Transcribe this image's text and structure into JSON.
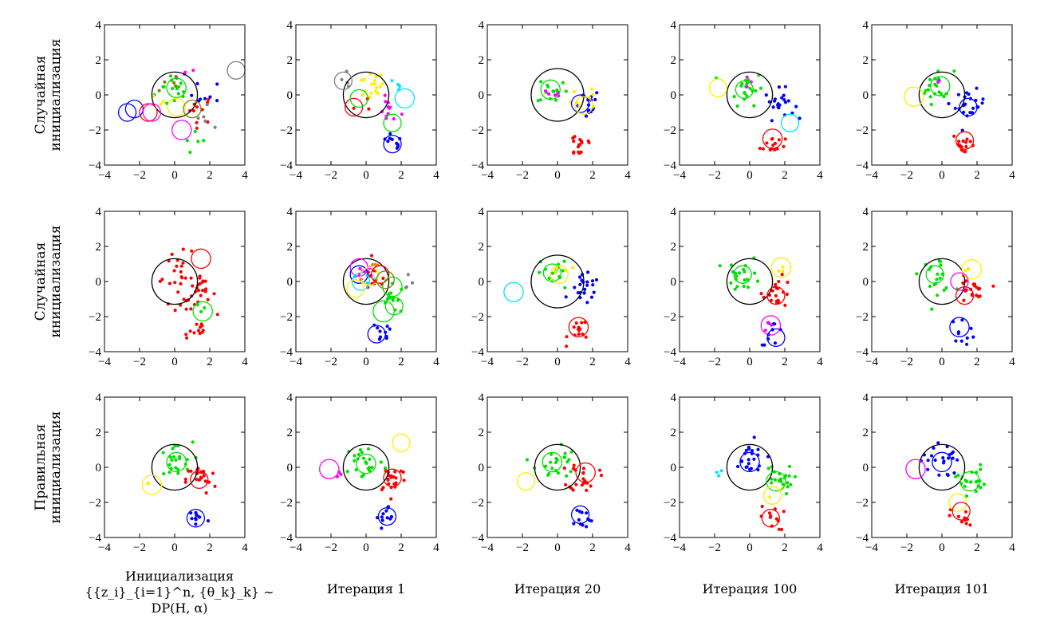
{
  "colors": {
    "black": "#000000",
    "red": "#ff0000",
    "green": "#00e000",
    "blue": "#0000ff",
    "yellow": "#ffee00",
    "magenta": "#ff00ff",
    "cyan": "#00e5ff",
    "gray": "#808080",
    "olive": "#808000",
    "orange": "#ff8000"
  },
  "row_labels": [
    [
      "Случайная",
      "инициализация"
    ],
    [
      "Случайная",
      "инициализация"
    ],
    [
      "Правильная",
      "инициализация"
    ]
  ],
  "column_labels": [
    [
      "Инициализация",
      "{{z_i}_{i=1}^n, {θ_k}_k} ∼",
      "DP(H, α)"
    ],
    [
      "Итерация 1"
    ],
    [
      "Итерация 20"
    ],
    [
      "Итерация 100"
    ],
    [
      "Итерация 101"
    ]
  ],
  "chart_data": {
    "type": "scatter",
    "grid": "3x5 small multiples",
    "xlim": [
      -4,
      4
    ],
    "ylim": [
      -4,
      4
    ],
    "xticks": [
      "−4",
      "−2",
      "0",
      "2",
      "4"
    ],
    "yticks": [
      "4",
      "2",
      "0",
      "−2",
      "−4"
    ],
    "grid_lines": false,
    "panels": [
      {
        "row": 0,
        "col": 0,
        "circles": [
          [
            0,
            0,
            1.3,
            "black"
          ],
          [
            -2.7,
            -1.0,
            0.5,
            "blue"
          ],
          [
            -2.3,
            -0.8,
            0.5,
            "blue"
          ],
          [
            -1.5,
            -1.0,
            0.5,
            "red"
          ],
          [
            -1.3,
            -1.0,
            0.5,
            "magenta"
          ],
          [
            0.4,
            -2.0,
            0.55,
            "magenta"
          ],
          [
            0.1,
            0.4,
            0.55,
            "green"
          ],
          [
            0.1,
            -0.7,
            0.5,
            "yellow"
          ],
          [
            1.0,
            -0.8,
            0.5,
            "olive"
          ],
          [
            3.5,
            1.4,
            0.5,
            "gray"
          ]
        ],
        "clusters": [
          [
            0.0,
            0.3,
            0.8,
            "green",
            14
          ],
          [
            1.4,
            -0.8,
            0.6,
            "red",
            10
          ],
          [
            1.3,
            -2.8,
            0.5,
            "green",
            5
          ],
          [
            -0.2,
            0.4,
            0.6,
            "olive",
            5
          ],
          [
            1.8,
            0.0,
            0.6,
            "blue",
            8
          ],
          [
            0.6,
            1.0,
            0.4,
            "magenta",
            4
          ],
          [
            2.0,
            -1.0,
            0.6,
            "gray",
            5
          ],
          [
            -0.5,
            -0.5,
            0.5,
            "yellow",
            3
          ]
        ]
      },
      {
        "row": 0,
        "col": 1,
        "circles": [
          [
            0,
            0,
            1.3,
            "black"
          ],
          [
            -1.3,
            0.8,
            0.5,
            "gray"
          ],
          [
            -0.7,
            -0.7,
            0.5,
            "red"
          ],
          [
            -0.4,
            -0.2,
            0.5,
            "green"
          ],
          [
            1.5,
            -1.6,
            0.5,
            "green"
          ],
          [
            2.2,
            -0.2,
            0.55,
            "cyan"
          ],
          [
            1.5,
            -2.8,
            0.5,
            "blue"
          ]
        ],
        "clusters": [
          [
            0.2,
            0.5,
            0.6,
            "yellow",
            18
          ],
          [
            1.3,
            -0.9,
            0.5,
            "magenta",
            12
          ],
          [
            1.4,
            -2.8,
            0.5,
            "blue",
            10
          ],
          [
            -0.9,
            0.8,
            0.4,
            "gray",
            4
          ],
          [
            1.8,
            0.2,
            0.4,
            "cyan",
            4
          ],
          [
            -0.3,
            -0.5,
            0.5,
            "red",
            3
          ]
        ]
      },
      {
        "row": 0,
        "col": 2,
        "circles": [
          [
            0,
            0,
            1.5,
            "black"
          ],
          [
            -0.4,
            0.3,
            0.55,
            "green"
          ],
          [
            1.3,
            -0.5,
            0.5,
            "blue"
          ],
          [
            1.5,
            -0.6,
            0.5,
            "yellow"
          ]
        ],
        "clusters": [
          [
            -0.3,
            0.3,
            0.6,
            "green",
            14
          ],
          [
            -0.2,
            0.0,
            0.3,
            "magenta",
            6
          ],
          [
            1.6,
            -0.5,
            0.6,
            "blue",
            16
          ],
          [
            1.3,
            -2.8,
            0.6,
            "red",
            16
          ],
          [
            1.8,
            0.0,
            0.7,
            "yellow",
            8
          ]
        ]
      },
      {
        "row": 0,
        "col": 3,
        "circles": [
          [
            0,
            0,
            1.3,
            "black"
          ],
          [
            -1.8,
            0.4,
            0.5,
            "yellow"
          ],
          [
            -0.3,
            0.3,
            0.5,
            "green"
          ],
          [
            2.3,
            -1.6,
            0.5,
            "cyan"
          ],
          [
            1.3,
            -2.5,
            0.55,
            "red"
          ]
        ],
        "clusters": [
          [
            -0.2,
            0.4,
            0.7,
            "green",
            20
          ],
          [
            1.7,
            -0.5,
            0.6,
            "blue",
            22
          ],
          [
            1.3,
            -2.8,
            0.5,
            "red",
            14
          ],
          [
            -0.5,
            0.8,
            0.3,
            "magenta",
            3
          ]
        ]
      },
      {
        "row": 0,
        "col": 4,
        "circles": [
          [
            0,
            0,
            1.3,
            "black"
          ],
          [
            -1.6,
            -0.1,
            0.55,
            "yellow"
          ],
          [
            -0.1,
            0.5,
            0.55,
            "green"
          ],
          [
            1.5,
            -0.7,
            0.5,
            "blue"
          ],
          [
            1.3,
            -2.6,
            0.5,
            "red"
          ]
        ],
        "clusters": [
          [
            -0.3,
            0.5,
            0.7,
            "green",
            20
          ],
          [
            1.6,
            -0.6,
            0.6,
            "blue",
            22
          ],
          [
            1.3,
            -2.8,
            0.5,
            "red",
            14
          ],
          [
            -0.2,
            0.7,
            0.2,
            "magenta",
            2
          ]
        ]
      },
      {
        "row": 1,
        "col": 0,
        "circles": [
          [
            0,
            0,
            1.3,
            "black"
          ],
          [
            1.5,
            1.3,
            0.55,
            "red"
          ],
          [
            1.6,
            -1.7,
            0.55,
            "green"
          ]
        ],
        "clusters": [
          [
            0.3,
            0.2,
            1.0,
            "red",
            30
          ],
          [
            1.5,
            -0.8,
            0.6,
            "red",
            20
          ],
          [
            1.2,
            -2.8,
            0.5,
            "red",
            12
          ],
          [
            1.6,
            -1.5,
            0.3,
            "green",
            3
          ]
        ]
      },
      {
        "row": 1,
        "col": 1,
        "circles": [
          [
            0,
            0,
            1.3,
            "black"
          ],
          [
            -0.4,
            0.8,
            0.5,
            "magenta"
          ],
          [
            -0.4,
            0.4,
            0.5,
            "blue"
          ],
          [
            -0.3,
            0.0,
            0.5,
            "cyan"
          ],
          [
            0.2,
            0.3,
            0.5,
            "yellow"
          ],
          [
            0.8,
            0.4,
            0.5,
            "red"
          ],
          [
            1.1,
            0.1,
            0.5,
            "olive"
          ],
          [
            1.5,
            -0.3,
            0.55,
            "green"
          ],
          [
            1.6,
            -1.4,
            0.5,
            "green"
          ],
          [
            1.0,
            -1.7,
            0.6,
            "green"
          ],
          [
            -0.6,
            -0.4,
            0.5,
            "yellow"
          ],
          [
            0.6,
            -3.0,
            0.5,
            "blue"
          ]
        ],
        "clusters": [
          [
            -0.1,
            0.6,
            0.6,
            "magenta",
            8
          ],
          [
            0.1,
            0.3,
            0.5,
            "cyan",
            6
          ],
          [
            0.5,
            0.1,
            0.6,
            "red",
            10
          ],
          [
            1.6,
            -1.0,
            0.6,
            "green",
            14
          ],
          [
            0.8,
            -3.0,
            0.5,
            "blue",
            10
          ],
          [
            0.5,
            0.8,
            0.3,
            "orange",
            3
          ],
          [
            2.5,
            0.0,
            0.3,
            "gray",
            3
          ]
        ]
      },
      {
        "row": 1,
        "col": 2,
        "circles": [
          [
            0,
            0,
            1.5,
            "black"
          ],
          [
            -2.5,
            -0.6,
            0.55,
            "cyan"
          ],
          [
            -0.3,
            0.5,
            0.5,
            "green"
          ],
          [
            0.1,
            0.4,
            0.5,
            "yellow"
          ],
          [
            1.2,
            -2.6,
            0.55,
            "red"
          ]
        ],
        "clusters": [
          [
            -0.3,
            0.4,
            0.7,
            "green",
            14
          ],
          [
            1.6,
            -0.5,
            0.6,
            "blue",
            22
          ],
          [
            1.3,
            -2.8,
            0.5,
            "red",
            14
          ],
          [
            0.2,
            0.6,
            0.4,
            "yellow",
            4
          ]
        ]
      },
      {
        "row": 1,
        "col": 3,
        "circles": [
          [
            0,
            0,
            1.3,
            "black"
          ],
          [
            1.8,
            0.8,
            0.55,
            "yellow"
          ],
          [
            -0.4,
            0.4,
            0.5,
            "green"
          ],
          [
            1.5,
            -0.8,
            0.5,
            "red"
          ],
          [
            1.2,
            -2.5,
            0.55,
            "magenta"
          ],
          [
            1.5,
            -3.2,
            0.5,
            "blue"
          ]
        ],
        "clusters": [
          [
            -0.3,
            0.4,
            0.7,
            "green",
            20
          ],
          [
            1.6,
            -0.6,
            0.6,
            "red",
            20
          ],
          [
            1.3,
            -2.9,
            0.5,
            "blue",
            10
          ],
          [
            1.2,
            -2.5,
            0.3,
            "magenta",
            4
          ],
          [
            1.6,
            0.7,
            0.3,
            "yellow",
            3
          ]
        ]
      },
      {
        "row": 1,
        "col": 4,
        "circles": [
          [
            0,
            0,
            1.3,
            "black"
          ],
          [
            1.7,
            0.7,
            0.55,
            "yellow"
          ],
          [
            -0.4,
            0.4,
            0.5,
            "green"
          ],
          [
            1.0,
            0.0,
            0.5,
            "magenta"
          ],
          [
            1.3,
            -0.8,
            0.5,
            "red"
          ],
          [
            1.0,
            -2.6,
            0.55,
            "blue"
          ]
        ],
        "clusters": [
          [
            -0.3,
            0.4,
            0.7,
            "green",
            20
          ],
          [
            1.6,
            -0.6,
            0.6,
            "red",
            20
          ],
          [
            1.2,
            -2.8,
            0.5,
            "blue",
            10
          ],
          [
            1.5,
            0.6,
            0.3,
            "yellow",
            3
          ]
        ]
      },
      {
        "row": 2,
        "col": 0,
        "circles": [
          [
            0,
            0,
            1.3,
            "black"
          ],
          [
            -1.3,
            -1.0,
            0.55,
            "yellow"
          ],
          [
            0.1,
            0.3,
            0.55,
            "green"
          ],
          [
            1.4,
            -0.7,
            0.5,
            "red"
          ],
          [
            1.2,
            -2.9,
            0.5,
            "blue"
          ]
        ],
        "clusters": [
          [
            -0.1,
            0.3,
            0.8,
            "green",
            22
          ],
          [
            1.5,
            -0.7,
            0.6,
            "red",
            22
          ],
          [
            1.3,
            -2.9,
            0.5,
            "blue",
            12
          ],
          [
            -1.6,
            -0.8,
            0.3,
            "yellow",
            2
          ]
        ]
      },
      {
        "row": 2,
        "col": 1,
        "circles": [
          [
            0,
            0,
            1.3,
            "black"
          ],
          [
            -2.1,
            -0.1,
            0.55,
            "magenta"
          ],
          [
            2.0,
            1.4,
            0.5,
            "yellow"
          ],
          [
            0.0,
            0.2,
            0.55,
            "green"
          ],
          [
            1.5,
            -0.6,
            0.5,
            "red"
          ],
          [
            1.2,
            -2.8,
            0.5,
            "blue"
          ]
        ],
        "clusters": [
          [
            -0.1,
            0.3,
            0.8,
            "green",
            22
          ],
          [
            1.5,
            -0.6,
            0.6,
            "red",
            22
          ],
          [
            1.3,
            -2.9,
            0.5,
            "blue",
            12
          ],
          [
            -1.7,
            -0.4,
            0.3,
            "magenta",
            3
          ]
        ]
      },
      {
        "row": 2,
        "col": 2,
        "circles": [
          [
            0,
            0,
            1.3,
            "black"
          ],
          [
            -1.8,
            -0.8,
            0.5,
            "yellow"
          ],
          [
            -0.3,
            0.3,
            0.55,
            "green"
          ],
          [
            1.6,
            -0.3,
            0.55,
            "red"
          ],
          [
            1.3,
            -2.7,
            0.5,
            "blue"
          ]
        ],
        "clusters": [
          [
            -0.1,
            0.3,
            0.8,
            "green",
            22
          ],
          [
            1.5,
            -0.5,
            0.6,
            "red",
            22
          ],
          [
            1.3,
            -2.9,
            0.5,
            "blue",
            12
          ]
        ]
      },
      {
        "row": 2,
        "col": 3,
        "circles": [
          [
            0,
            0,
            1.3,
            "black"
          ],
          [
            0.0,
            0.3,
            0.55,
            "blue"
          ],
          [
            1.5,
            -0.8,
            0.55,
            "green"
          ],
          [
            1.3,
            -1.6,
            0.5,
            "yellow"
          ],
          [
            1.2,
            -2.9,
            0.5,
            "red"
          ]
        ],
        "clusters": [
          [
            -0.1,
            0.4,
            0.8,
            "blue",
            22
          ],
          [
            1.6,
            -0.7,
            0.6,
            "green",
            20
          ],
          [
            1.3,
            -2.9,
            0.5,
            "red",
            12
          ],
          [
            -1.7,
            -0.4,
            0.3,
            "cyan",
            3
          ],
          [
            1.4,
            -1.4,
            0.3,
            "yellow",
            2
          ]
        ]
      },
      {
        "row": 2,
        "col": 4,
        "circles": [
          [
            0,
            0,
            1.3,
            "black"
          ],
          [
            -1.5,
            -0.1,
            0.55,
            "magenta"
          ],
          [
            0.0,
            0.3,
            0.55,
            "blue"
          ],
          [
            1.6,
            -0.8,
            0.55,
            "green"
          ],
          [
            0.9,
            -2.0,
            0.5,
            "yellow"
          ],
          [
            1.1,
            -2.5,
            0.5,
            "red"
          ]
        ],
        "clusters": [
          [
            -0.1,
            0.4,
            0.8,
            "blue",
            22
          ],
          [
            1.6,
            -0.7,
            0.6,
            "green",
            20
          ],
          [
            1.2,
            -2.9,
            0.5,
            "red",
            12
          ]
        ]
      }
    ]
  }
}
